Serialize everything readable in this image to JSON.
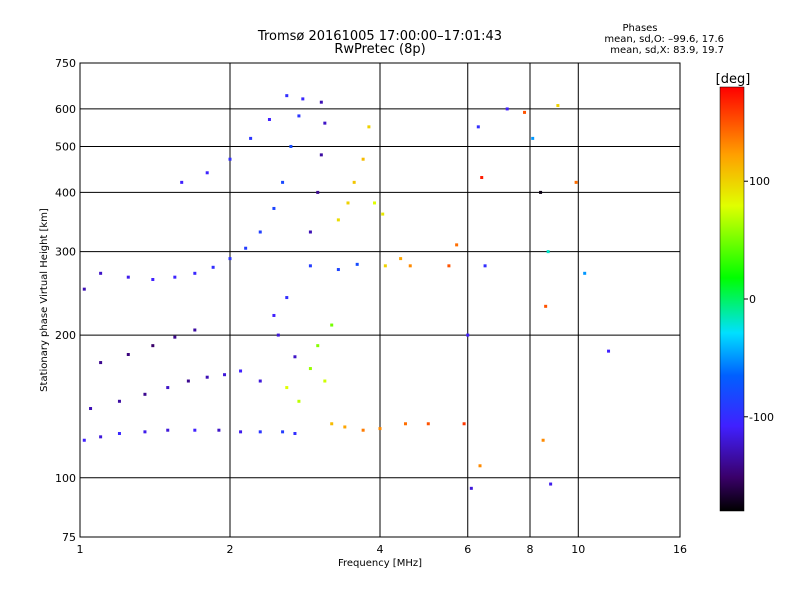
{
  "chart_data": {
    "type": "scatter",
    "title": "Tromsø 20161005 17:00:00–17:01:43",
    "subtitle": "RwPretec (8p)",
    "xlabel": "Frequency [MHz]",
    "ylabel": "Stationary phase Virtual Height [km]",
    "x_scale": "log",
    "y_scale": "log",
    "xlim": [
      1,
      16
    ],
    "ylim": [
      75,
      750
    ],
    "x_ticks": [
      1,
      2,
      4,
      6,
      8,
      10,
      16
    ],
    "y_ticks": [
      75,
      100,
      200,
      300,
      400,
      500,
      600,
      750
    ],
    "grid": true,
    "stats": {
      "heading": "Phases",
      "line1": "mean, sd,O: –99.6, 17.6",
      "line2": "mean, sd,X:  83.9, 19.7"
    },
    "colorbar": {
      "unit_label": "[deg]",
      "range": [
        -180,
        180
      ],
      "ticks": [
        -100,
        0,
        100
      ],
      "colormap": "rainbow"
    },
    "series": [
      {
        "values": [
          {
            "x": 1.02,
            "y": 120,
            "c": -110
          },
          {
            "x": 1.1,
            "y": 122,
            "c": -120
          },
          {
            "x": 1.2,
            "y": 124,
            "c": -105
          },
          {
            "x": 1.35,
            "y": 125,
            "c": -115
          },
          {
            "x": 1.5,
            "y": 126,
            "c": -120
          },
          {
            "x": 1.7,
            "y": 126,
            "c": -110
          },
          {
            "x": 1.9,
            "y": 126,
            "c": -125
          },
          {
            "x": 2.1,
            "y": 125,
            "c": -115
          },
          {
            "x": 2.3,
            "y": 125,
            "c": -95
          },
          {
            "x": 2.55,
            "y": 125,
            "c": -90
          },
          {
            "x": 2.7,
            "y": 124,
            "c": -100
          },
          {
            "x": 1.05,
            "y": 140,
            "c": -130
          },
          {
            "x": 1.2,
            "y": 145,
            "c": -135
          },
          {
            "x": 1.35,
            "y": 150,
            "c": -140
          },
          {
            "x": 1.5,
            "y": 155,
            "c": -125
          },
          {
            "x": 1.65,
            "y": 160,
            "c": -140
          },
          {
            "x": 1.8,
            "y": 163,
            "c": -130
          },
          {
            "x": 1.95,
            "y": 165,
            "c": -120
          },
          {
            "x": 2.1,
            "y": 168,
            "c": -110
          },
          {
            "x": 2.3,
            "y": 160,
            "c": -120
          },
          {
            "x": 1.1,
            "y": 175,
            "c": -140
          },
          {
            "x": 1.25,
            "y": 182,
            "c": -145
          },
          {
            "x": 1.4,
            "y": 190,
            "c": -150
          },
          {
            "x": 1.55,
            "y": 198,
            "c": -140
          },
          {
            "x": 1.7,
            "y": 205,
            "c": -135
          },
          {
            "x": 1.02,
            "y": 250,
            "c": -130
          },
          {
            "x": 1.1,
            "y": 270,
            "c": -125
          },
          {
            "x": 1.25,
            "y": 265,
            "c": -115
          },
          {
            "x": 1.4,
            "y": 262,
            "c": -110
          },
          {
            "x": 1.55,
            "y": 265,
            "c": -108
          },
          {
            "x": 1.7,
            "y": 270,
            "c": -105
          },
          {
            "x": 1.85,
            "y": 278,
            "c": -100
          },
          {
            "x": 2.0,
            "y": 290,
            "c": -95
          },
          {
            "x": 2.15,
            "y": 305,
            "c": -90
          },
          {
            "x": 2.3,
            "y": 330,
            "c": -88
          },
          {
            "x": 2.45,
            "y": 370,
            "c": -85
          },
          {
            "x": 2.55,
            "y": 420,
            "c": -82
          },
          {
            "x": 2.65,
            "y": 500,
            "c": -80
          },
          {
            "x": 2.75,
            "y": 580,
            "c": -95
          },
          {
            "x": 2.8,
            "y": 630,
            "c": -105
          },
          {
            "x": 1.6,
            "y": 420,
            "c": -110
          },
          {
            "x": 1.8,
            "y": 440,
            "c": -108
          },
          {
            "x": 2.0,
            "y": 470,
            "c": -100
          },
          {
            "x": 2.2,
            "y": 520,
            "c": -95
          },
          {
            "x": 2.4,
            "y": 570,
            "c": -110
          },
          {
            "x": 2.6,
            "y": 640,
            "c": -100
          },
          {
            "x": 2.9,
            "y": 280,
            "c": -90
          },
          {
            "x": 3.3,
            "y": 275,
            "c": -85
          },
          {
            "x": 3.6,
            "y": 282,
            "c": -80
          },
          {
            "x": 2.9,
            "y": 330,
            "c": -130
          },
          {
            "x": 3.0,
            "y": 400,
            "c": -140
          },
          {
            "x": 3.05,
            "y": 480,
            "c": -135
          },
          {
            "x": 3.1,
            "y": 560,
            "c": -125
          },
          {
            "x": 3.05,
            "y": 620,
            "c": -130
          },
          {
            "x": 2.45,
            "y": 220,
            "c": -110
          },
          {
            "x": 2.5,
            "y": 200,
            "c": -120
          },
          {
            "x": 2.7,
            "y": 180,
            "c": -125
          },
          {
            "x": 2.6,
            "y": 240,
            "c": -100
          },
          {
            "x": 2.6,
            "y": 155,
            "c": 80
          },
          {
            "x": 2.75,
            "y": 145,
            "c": 70
          },
          {
            "x": 2.9,
            "y": 170,
            "c": 60
          },
          {
            "x": 3.0,
            "y": 190,
            "c": 55
          },
          {
            "x": 3.1,
            "y": 160,
            "c": 75
          },
          {
            "x": 3.2,
            "y": 210,
            "c": 50
          },
          {
            "x": 3.2,
            "y": 130,
            "c": 110
          },
          {
            "x": 3.4,
            "y": 128,
            "c": 120
          },
          {
            "x": 3.7,
            "y": 126,
            "c": 135
          },
          {
            "x": 4.0,
            "y": 127,
            "c": 130
          },
          {
            "x": 3.3,
            "y": 350,
            "c": 95
          },
          {
            "x": 3.45,
            "y": 380,
            "c": 100
          },
          {
            "x": 3.55,
            "y": 420,
            "c": 105
          },
          {
            "x": 3.7,
            "y": 470,
            "c": 110
          },
          {
            "x": 3.8,
            "y": 550,
            "c": 100
          },
          {
            "x": 3.9,
            "y": 380,
            "c": 80
          },
          {
            "x": 4.05,
            "y": 360,
            "c": 90
          },
          {
            "x": 4.1,
            "y": 280,
            "c": 100
          },
          {
            "x": 4.4,
            "y": 290,
            "c": 120
          },
          {
            "x": 4.6,
            "y": 280,
            "c": 130
          },
          {
            "x": 4.5,
            "y": 130,
            "c": 140
          },
          {
            "x": 5.0,
            "y": 130,
            "c": 150
          },
          {
            "x": 5.5,
            "y": 280,
            "c": 150
          },
          {
            "x": 5.7,
            "y": 310,
            "c": 140
          },
          {
            "x": 5.9,
            "y": 130,
            "c": 160
          },
          {
            "x": 6.0,
            "y": 200,
            "c": -110
          },
          {
            "x": 6.1,
            "y": 95,
            "c": -120
          },
          {
            "x": 6.3,
            "y": 550,
            "c": -100
          },
          {
            "x": 6.4,
            "y": 430,
            "c": 170
          },
          {
            "x": 6.35,
            "y": 106,
            "c": 130
          },
          {
            "x": 6.5,
            "y": 280,
            "c": -100
          },
          {
            "x": 7.2,
            "y": 600,
            "c": -110
          },
          {
            "x": 7.8,
            "y": 590,
            "c": 150
          },
          {
            "x": 8.1,
            "y": 520,
            "c": -50
          },
          {
            "x": 8.4,
            "y": 400,
            "c": -175
          },
          {
            "x": 8.6,
            "y": 230,
            "c": 150
          },
          {
            "x": 8.7,
            "y": 300,
            "c": -20
          },
          {
            "x": 9.1,
            "y": 610,
            "c": 100
          },
          {
            "x": 9.9,
            "y": 420,
            "c": 140
          },
          {
            "x": 10.3,
            "y": 270,
            "c": -50
          },
          {
            "x": 11.5,
            "y": 185,
            "c": -110
          },
          {
            "x": 8.5,
            "y": 120,
            "c": 130
          },
          {
            "x": 8.8,
            "y": 97,
            "c": -115
          }
        ]
      }
    ]
  }
}
